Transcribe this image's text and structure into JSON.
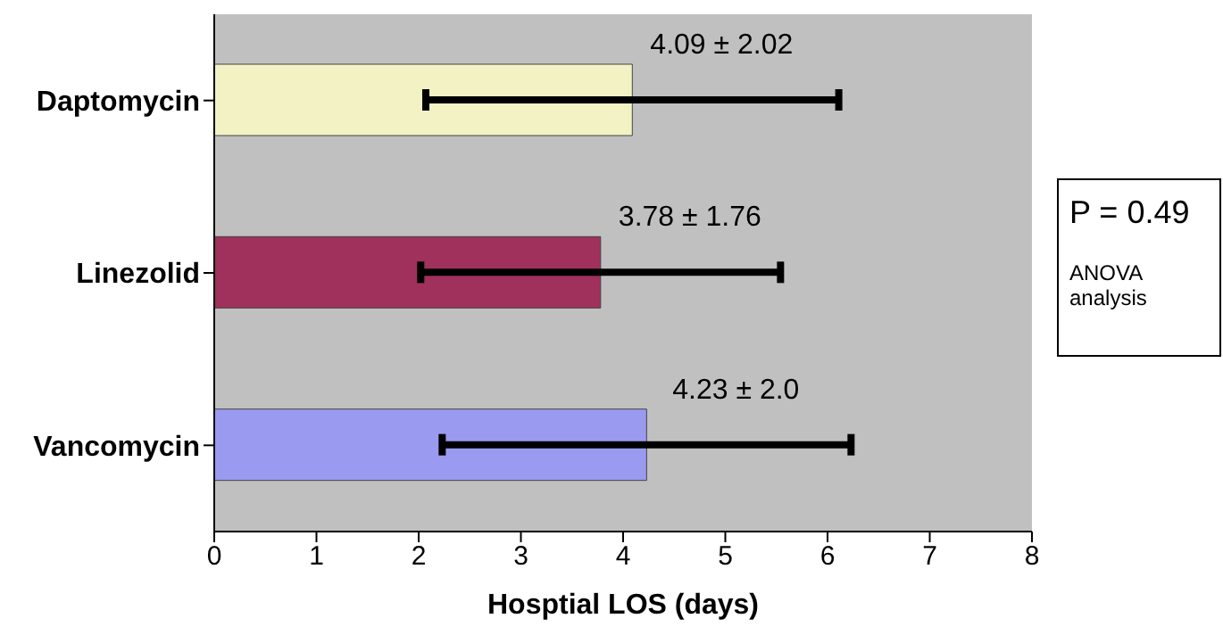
{
  "chart_data": {
    "type": "bar",
    "orientation": "horizontal",
    "categories": [
      "Daptomycin",
      "Linezolid",
      "Vancomycin"
    ],
    "values": [
      4.09,
      3.78,
      4.23
    ],
    "colors": [
      "#f2f2c4",
      "#a0305c",
      "#9a9af0"
    ],
    "errors": [
      2.02,
      1.76,
      2.0
    ],
    "value_labels": [
      "4.09 ± 2.02",
      "3.78 ± 1.76",
      "4.23 ± 2.0"
    ],
    "xlabel": "Hosptial LOS (days)",
    "xlim": [
      0,
      8
    ],
    "xticks": [
      0,
      1,
      2,
      3,
      4,
      5,
      6,
      7,
      8
    ],
    "grid": false,
    "annotations": [
      "P = 0.49",
      "ANOVA analysis"
    ]
  }
}
